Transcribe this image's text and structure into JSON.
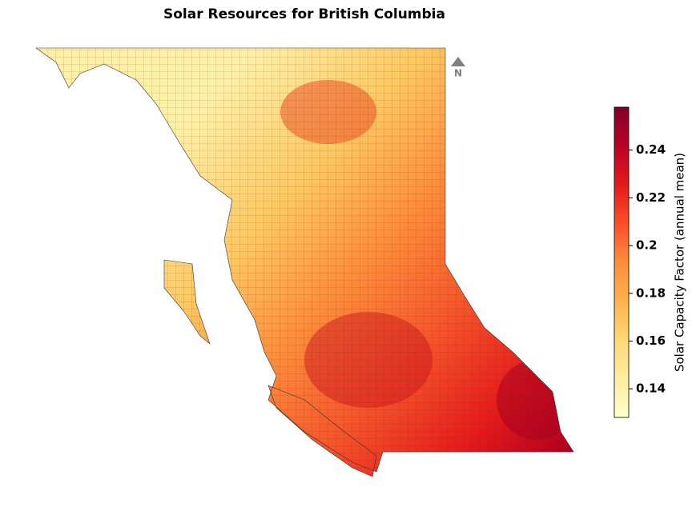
{
  "title": "Solar Resources for British Columbia",
  "north_label": "N",
  "colorbar": {
    "label": "Solar Capacity Factor (annual mean)",
    "lim": [
      0.128,
      0.258
    ],
    "ticks": [
      0.14,
      0.16,
      0.18,
      0.2,
      0.22,
      0.24
    ]
  }
}
